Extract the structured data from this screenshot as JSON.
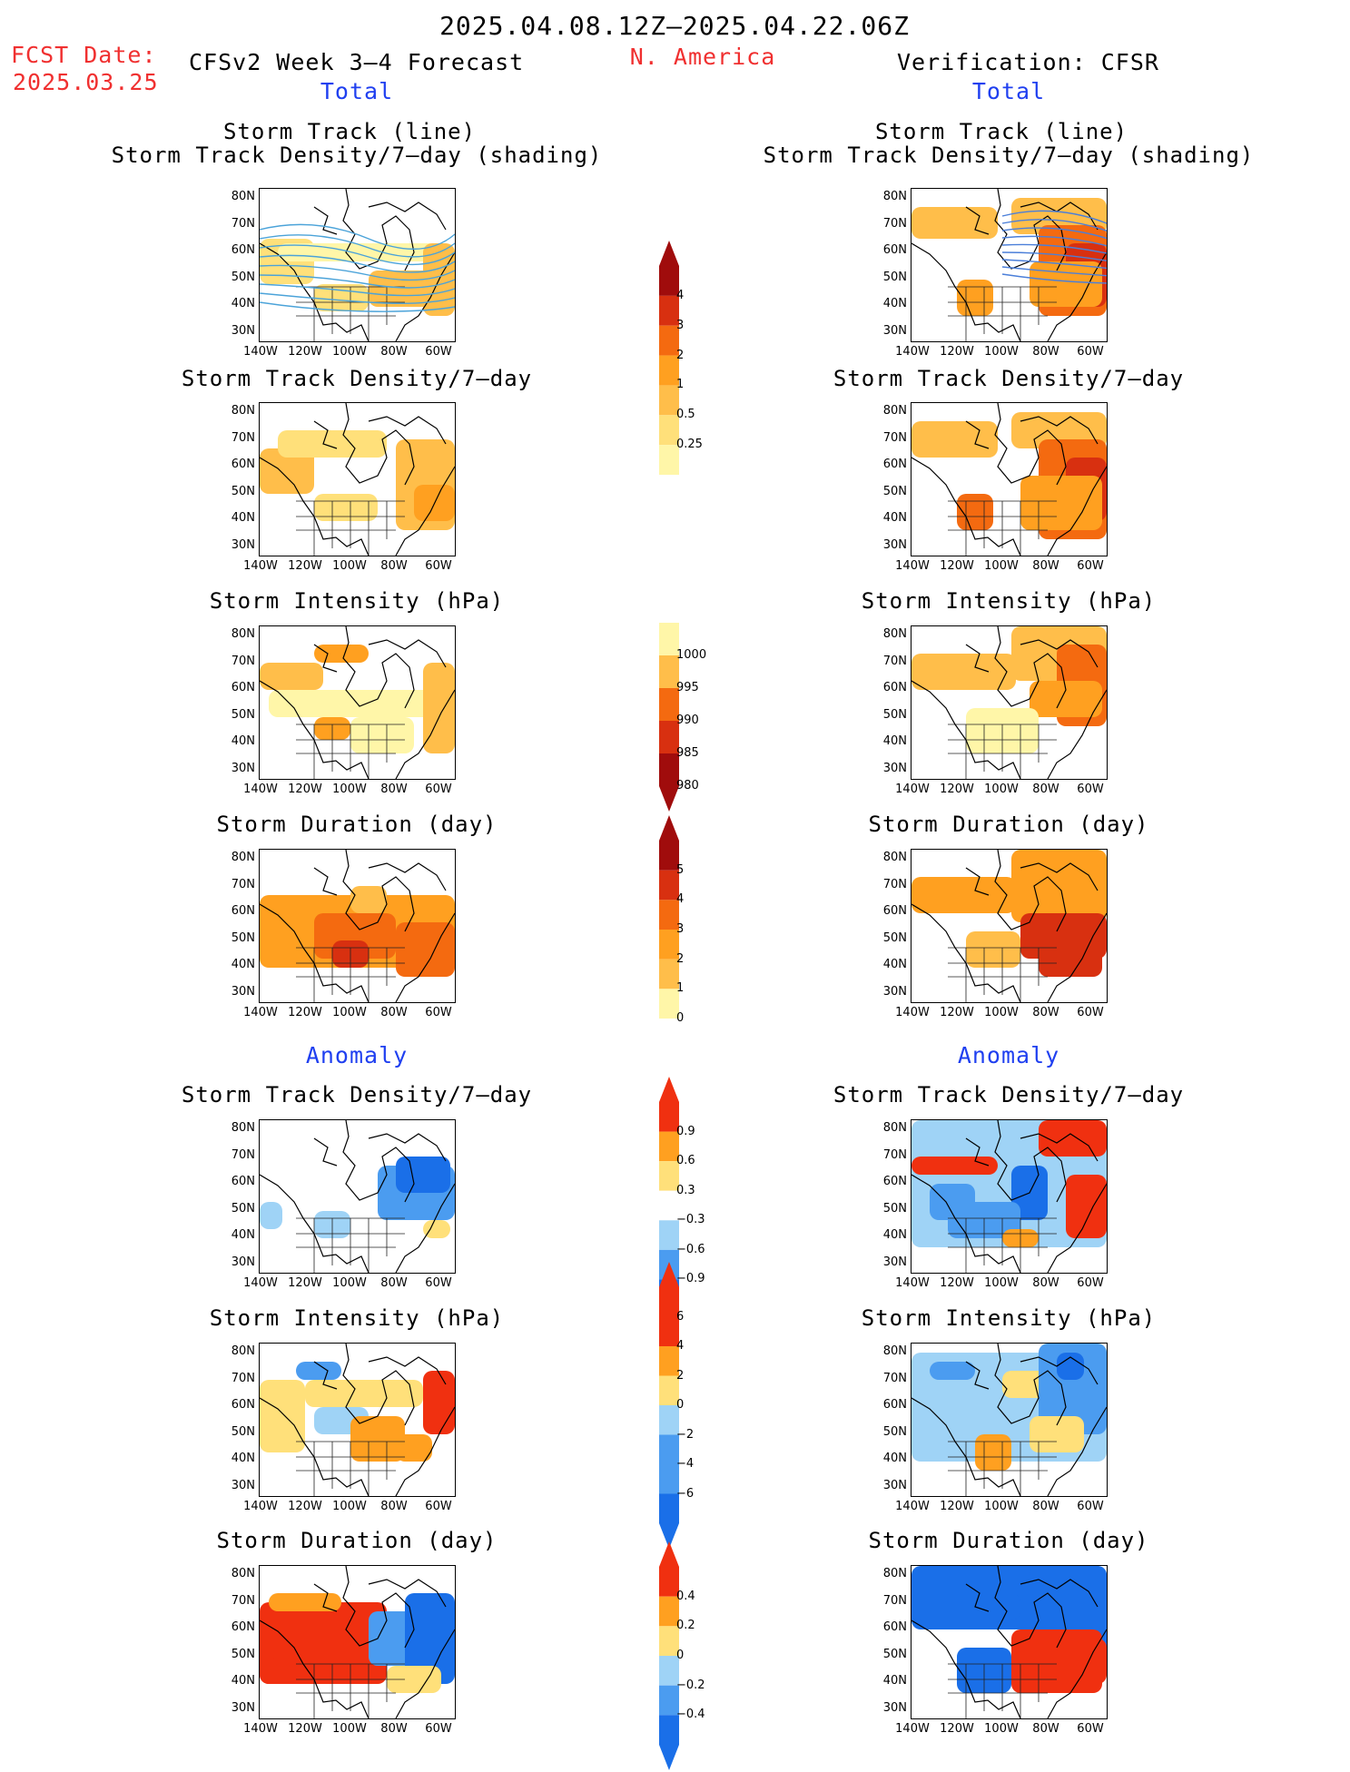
{
  "header": {
    "period": "2025.04.08.12Z–2025.04.22.06Z",
    "fcst_label": "FCST Date:",
    "fcst_date": "2025.03.25",
    "model": "CFSv2 Week 3–4 Forecast",
    "region": "N. America",
    "verification": "Verification: CFSR"
  },
  "sections": {
    "total": "Total",
    "anomaly": "Anomaly"
  },
  "panel_titles": {
    "track_line": "Storm Track (line)",
    "track_shading": "Storm Track Density/7–day (shading)",
    "density": "Storm Track Density/7–day",
    "intensity": "Storm Intensity (hPa)",
    "duration": "Storm Duration (day)"
  },
  "axes": {
    "lat_ticks": [
      "80N",
      "70N",
      "60N",
      "50N",
      "40N",
      "30N"
    ],
    "lon_ticks": [
      "140W",
      "120W",
      "100W",
      "80W",
      "60W"
    ]
  },
  "colorbars": {
    "density_total": [
      "4",
      "3",
      "2",
      "1",
      "0.5",
      "0.25"
    ],
    "intensity_total": [
      "1000",
      "995",
      "990",
      "985",
      "980"
    ],
    "duration_total": [
      "5",
      "4",
      "3",
      "2",
      "1",
      "0"
    ],
    "density_anom": [
      "0.9",
      "0.6",
      "0.3",
      "−0.3",
      "−0.6",
      "−0.9"
    ],
    "intensity_anom": [
      "6",
      "4",
      "2",
      "0",
      "−2",
      "−4",
      "−6"
    ],
    "duration_anom": [
      "0.4",
      "0.2",
      "0",
      "−0.2",
      "−0.4"
    ]
  },
  "colors": {
    "title_red": "#f03030",
    "section_blue": "#2040f0",
    "warm_scale": [
      "#fff6a8",
      "#ffe07a",
      "#ffbe4a",
      "#ffa020",
      "#f46a10",
      "#d83010",
      "#a00c0c"
    ],
    "anom_scale": [
      "#1a6fe8",
      "#4b9cf0",
      "#9fd3f6",
      "#ffffff",
      "#ffe07a",
      "#ffa020",
      "#f03010"
    ]
  },
  "icons": [
    "coastline-map-icon"
  ]
}
